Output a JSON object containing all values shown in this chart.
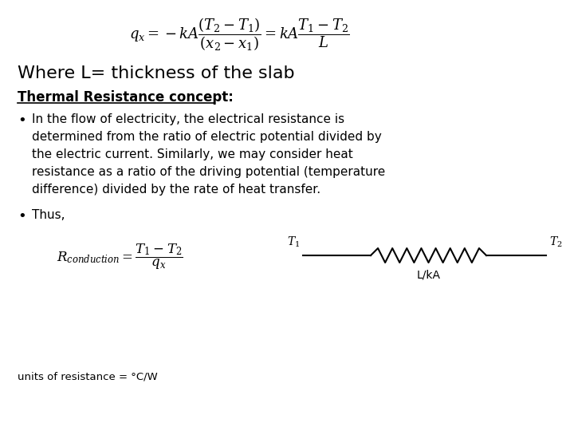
{
  "bg_color": "#ffffff",
  "where_text": "Where L= thickness of the slab",
  "heading": "Thermal Resistance concept:",
  "bullet1_lines": [
    "In the flow of electricity, the electrical resistance is",
    "determined from the ratio of electric potential divided by",
    "the electric current. Similarly, we may consider heat",
    "resistance as a ratio of the driving potential (temperature",
    "difference) divided by the rate of heat transfer."
  ],
  "bullet2": "Thus,",
  "units_text": "units of resistance = °C/W",
  "circuit_label_center": "L/kA"
}
